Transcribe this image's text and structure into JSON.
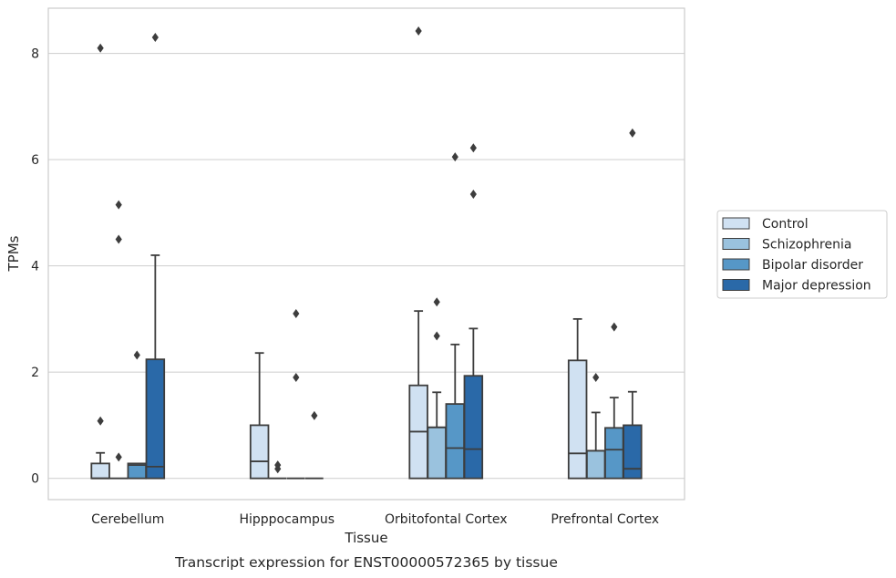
{
  "chart_data": {
    "type": "box",
    "caption": "Transcript expression for ENST00000572365 by tissue",
    "xlabel": "Tissue",
    "ylabel": "TPMs",
    "ylim": [
      -0.4,
      8.85
    ],
    "yticks": [
      0,
      2,
      4,
      6,
      8
    ],
    "grid": "horizontal",
    "legend_position": "outside-right",
    "categories": [
      "Cerebellum",
      "Hipppocampus",
      "Orbitofontal Cortex",
      "Prefrontal Cortex"
    ],
    "series": [
      {
        "name": "Control",
        "color": "#d0e1f2",
        "boxes": [
          {
            "min": 0,
            "q1": 0,
            "median": 0,
            "q3": 0.28,
            "max": 0.48,
            "outliers": [
              1.08,
              8.1
            ]
          },
          {
            "min": 0,
            "q1": 0,
            "median": 0.32,
            "q3": 1.0,
            "max": 2.36,
            "outliers": []
          },
          {
            "min": 0,
            "q1": 0,
            "median": 0.88,
            "q3": 1.75,
            "max": 3.15,
            "outliers": [
              8.42
            ]
          },
          {
            "min": 0,
            "q1": 0,
            "median": 0.47,
            "q3": 2.22,
            "max": 3.0,
            "outliers": []
          }
        ]
      },
      {
        "name": "Schizophrenia",
        "color": "#9ac2de",
        "boxes": [
          {
            "min": 0,
            "q1": 0,
            "median": 0,
            "q3": 0,
            "max": 0,
            "outliers": [
              0.4,
              4.5,
              5.15
            ]
          },
          {
            "min": 0,
            "q1": 0,
            "median": 0,
            "q3": 0,
            "max": 0,
            "outliers": [
              0.18,
              0.25
            ]
          },
          {
            "min": 0,
            "q1": 0,
            "median": 0.96,
            "q3": 0.96,
            "max": 1.62,
            "outliers": [
              2.68,
              3.32
            ]
          },
          {
            "min": 0,
            "q1": 0,
            "median": 0.52,
            "q3": 0.52,
            "max": 1.24,
            "outliers": [
              1.9
            ]
          }
        ]
      },
      {
        "name": "Bipolar disorder",
        "color": "#5697c7",
        "boxes": [
          {
            "min": 0,
            "q1": 0,
            "median": 0.25,
            "q3": 0.28,
            "max": 0.28,
            "outliers": [
              2.32
            ]
          },
          {
            "min": 0,
            "q1": 0,
            "median": 0,
            "q3": 0,
            "max": 0,
            "outliers": [
              1.9,
              3.1
            ]
          },
          {
            "min": 0,
            "q1": 0,
            "median": 0.57,
            "q3": 1.4,
            "max": 2.52,
            "outliers": [
              6.05
            ]
          },
          {
            "min": 0,
            "q1": 0,
            "median": 0.54,
            "q3": 0.95,
            "max": 1.52,
            "outliers": [
              2.85
            ]
          }
        ]
      },
      {
        "name": "Major depression",
        "color": "#2a69a8",
        "boxes": [
          {
            "min": 0,
            "q1": 0,
            "median": 0.22,
            "q3": 2.24,
            "max": 4.2,
            "outliers": [
              8.3
            ]
          },
          {
            "min": 0,
            "q1": 0,
            "median": 0,
            "q3": 0,
            "max": 0,
            "outliers": [
              1.18
            ]
          },
          {
            "min": 0,
            "q1": 0,
            "median": 0.55,
            "q3": 1.93,
            "max": 2.82,
            "outliers": [
              5.35,
              6.22
            ]
          },
          {
            "min": 0,
            "q1": 0,
            "median": 0.18,
            "q3": 1.0,
            "max": 1.63,
            "outliers": [
              6.5
            ]
          }
        ]
      }
    ]
  }
}
